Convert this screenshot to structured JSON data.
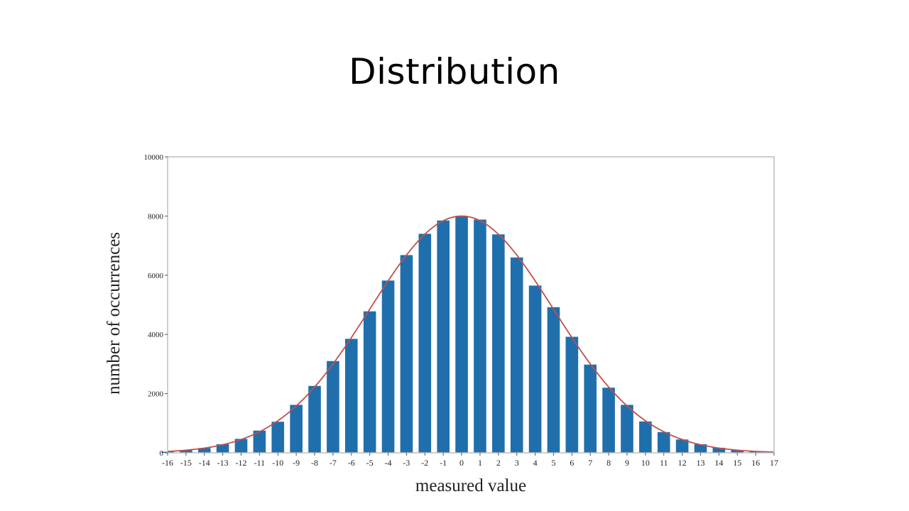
{
  "slide": {
    "title": "Distribution"
  },
  "chart_data": {
    "type": "bar",
    "title": "",
    "xlabel": "measured value",
    "ylabel": "number of occurrences",
    "ylim": [
      0,
      10000
    ],
    "yticks": [
      0,
      2000,
      4000,
      6000,
      8000,
      10000
    ],
    "ytick_labels": [
      "0",
      "2000",
      "4000",
      "6000",
      "8000",
      "10000"
    ],
    "xlim": [
      -16,
      17
    ],
    "categories": [
      "-16",
      "-15",
      "-14",
      "-13",
      "-12",
      "-11",
      "-10",
      "-9",
      "-8",
      "-7",
      "-6",
      "-5",
      "-4",
      "-3",
      "-2",
      "-1",
      "0",
      "1",
      "2",
      "3",
      "4",
      "5",
      "6",
      "7",
      "8",
      "9",
      "10",
      "11",
      "12",
      "13",
      "14",
      "15",
      "16",
      "17"
    ],
    "series": [
      {
        "values": [
          35,
          90,
          160,
          290,
          470,
          750,
          1050,
          1620,
          2260,
          3100,
          3850,
          4780,
          5820,
          6680,
          7400,
          7850,
          8000,
          7880,
          7380,
          6600,
          5650,
          4920,
          3920,
          2980,
          2200,
          1620,
          1060,
          700,
          450,
          290,
          170,
          90,
          40,
          0
        ],
        "color": "#1f6fad"
      }
    ],
    "fit_curve": {
      "color": "#c0504d",
      "peak": 8000,
      "center": 0,
      "sigma": 5
    },
    "grid": false,
    "legend": "none"
  }
}
